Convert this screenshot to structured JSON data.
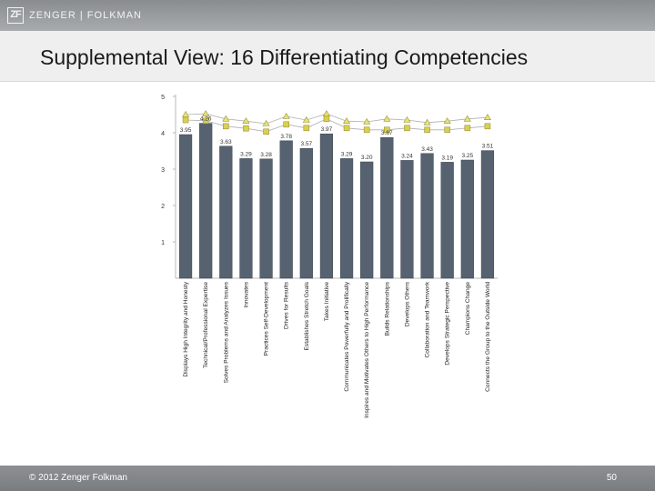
{
  "header": {
    "logo_mark": "ZF",
    "logo_text": "ZENGER | FOLKMAN"
  },
  "slide": {
    "title": "Supplemental View: 16 Differentiating Competencies",
    "copyright": "© 2012 Zenger Folkman",
    "page_number": "50"
  },
  "colors": {
    "bar": "#566270",
    "triangle_marker": "#e7e27a",
    "square_marker": "#d8cf55",
    "marker_line": "#b0b0b0"
  },
  "chart_data": {
    "type": "bar",
    "categories": [
      "Displays High Integrity and Honesty",
      "Technical/Professional Expertise",
      "Solves Problems and Analyzes Issues",
      "Innovates",
      "Practices Self-Development",
      "Drives for Results",
      "Establishes Stretch Goals",
      "Takes Initiative",
      "Communicates Powerfully and Prolifically",
      "Inspires and Motivates Others to High Performance",
      "Builds Relationships",
      "Develops Others",
      "Collaboration and Teamwork",
      "Develops Strategic Perspective",
      "Champions Change",
      "Connects the Group to the Outside World"
    ],
    "values": [
      3.95,
      4.26,
      3.63,
      3.29,
      3.28,
      3.78,
      3.57,
      3.97,
      3.29,
      3.2,
      3.87,
      3.24,
      3.43,
      3.19,
      3.25,
      3.51
    ],
    "value_labels": [
      "3.95",
      "4.26",
      "3.63",
      "3.29",
      "3.28",
      "3.78",
      "3.57",
      "3.97",
      "3.29",
      "3.20",
      "3.87",
      "3.24",
      "3.43",
      "3.19",
      "3.25",
      "3.51"
    ],
    "marker_series": [
      {
        "marker": "triangle",
        "values": [
          4.5,
          4.52,
          4.38,
          4.32,
          4.25,
          4.45,
          4.35,
          4.52,
          4.32,
          4.3,
          4.38,
          4.35,
          4.28,
          4.32,
          4.38,
          4.42
        ]
      },
      {
        "marker": "square",
        "values": [
          4.35,
          4.33,
          4.18,
          4.12,
          4.03,
          4.23,
          4.13,
          4.38,
          4.13,
          4.08,
          4.08,
          4.13,
          4.08,
          4.08,
          4.13,
          4.18
        ]
      }
    ],
    "ylim": [
      0,
      5
    ],
    "yticks": [
      "1",
      "2",
      "3",
      "4",
      "5"
    ],
    "title": "",
    "xlabel": "",
    "ylabel": "",
    "grid": false
  }
}
